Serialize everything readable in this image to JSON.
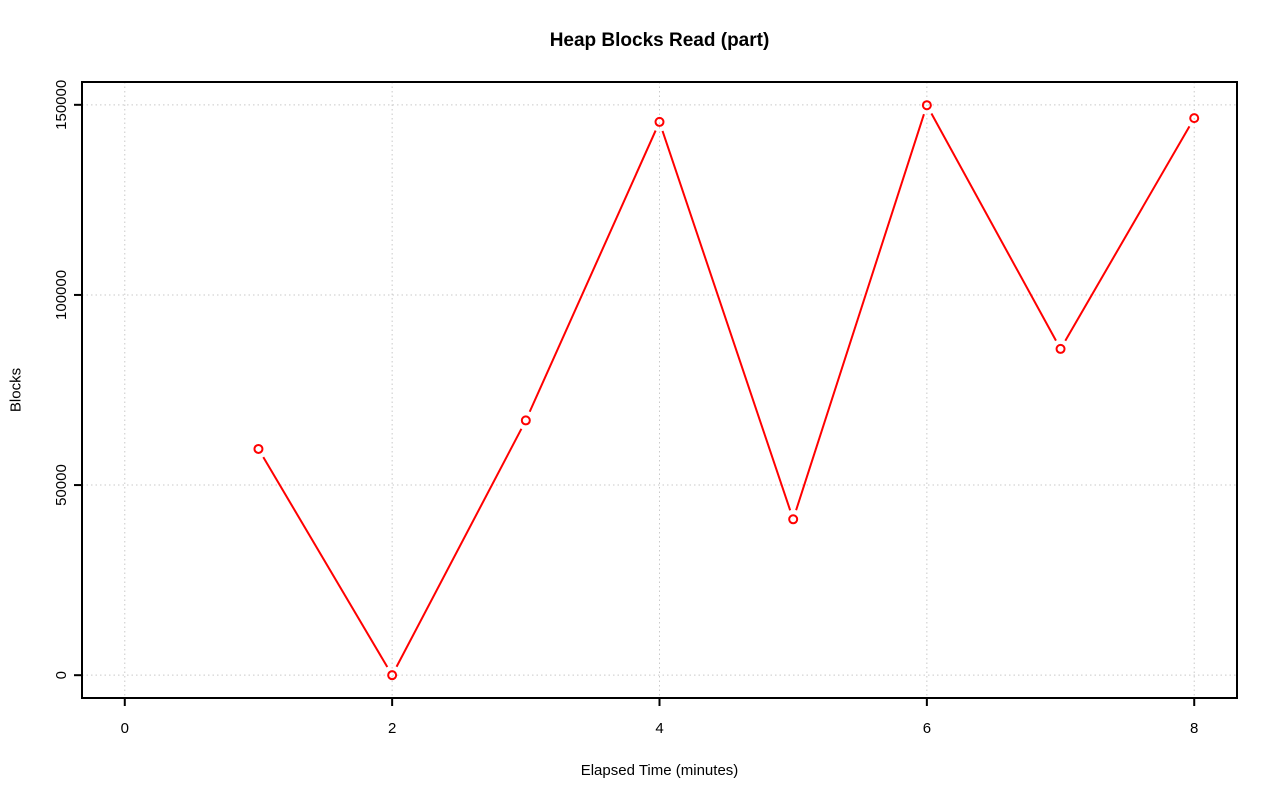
{
  "page": {
    "background": "#ffffff"
  },
  "chart_data": {
    "type": "line",
    "title": "Heap Blocks Read (part)",
    "xlabel": "Elapsed Time (minutes)",
    "ylabel": "Blocks",
    "x": [
      1,
      2,
      3,
      4,
      5,
      6,
      7,
      8
    ],
    "values": [
      59500,
      0,
      67000,
      145500,
      41000,
      149900,
      85800,
      146500
    ],
    "xlim": [
      0,
      8
    ],
    "ylim": [
      0,
      150000
    ],
    "xticks": [
      0,
      2,
      4,
      6,
      8
    ],
    "yticks": [
      0,
      50000,
      100000,
      150000
    ],
    "grid": true,
    "legend_position": "none",
    "style": {
      "line_color": "#ff0000",
      "marker": "open-circle",
      "marker_color": "#ff0000",
      "grid_color": "#c9c9c9",
      "grid_style": "dotted",
      "axis_color": "#000000",
      "text_color": "#000000"
    }
  }
}
